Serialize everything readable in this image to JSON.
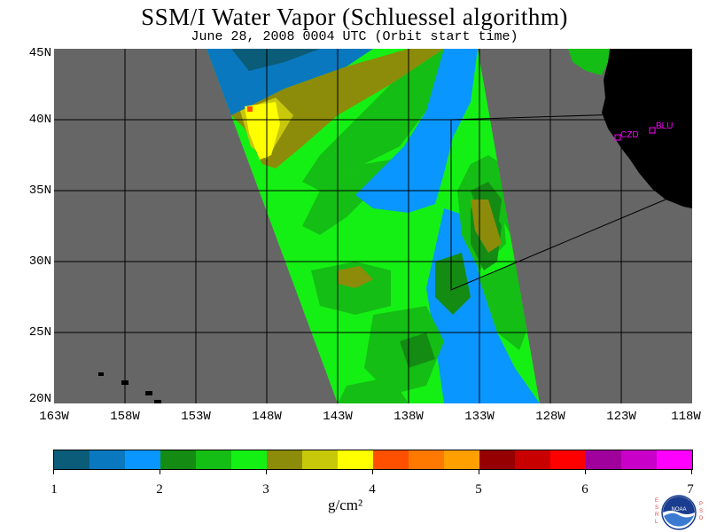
{
  "title": "SSM/I Water Vapor (Schluessel algorithm)",
  "subtitle": "June 28, 2008  0004 UTC  (Orbit start time)",
  "map": {
    "lat_labels": [
      "45N",
      "40N",
      "35N",
      "30N",
      "25N",
      "20N"
    ],
    "lon_labels": [
      "163W",
      "158W",
      "153W",
      "148W",
      "143W",
      "138W",
      "133W",
      "128W",
      "123W",
      "118W"
    ],
    "stations": [
      {
        "label": "CZD"
      },
      {
        "label": "BLU"
      }
    ],
    "background_color": "#666666",
    "land_color": "#000000"
  },
  "colorbar": {
    "colors": [
      "#0a5c78",
      "#0a78be",
      "#0a96ff",
      "#148c14",
      "#14be14",
      "#14f014",
      "#8c8c0a",
      "#c8c80a",
      "#ffff00",
      "#ff5000",
      "#ff7800",
      "#ffa000",
      "#960000",
      "#c80000",
      "#ff0000",
      "#a0009b",
      "#c800c8",
      "#ff00ff"
    ],
    "tick_labels": [
      "1",
      "2",
      "3",
      "4",
      "5",
      "6",
      "7"
    ],
    "units": "g/cm²"
  },
  "logo": {
    "left_text": "ESRL",
    "right_text": "PSD",
    "emblem_text": "NOAA"
  }
}
